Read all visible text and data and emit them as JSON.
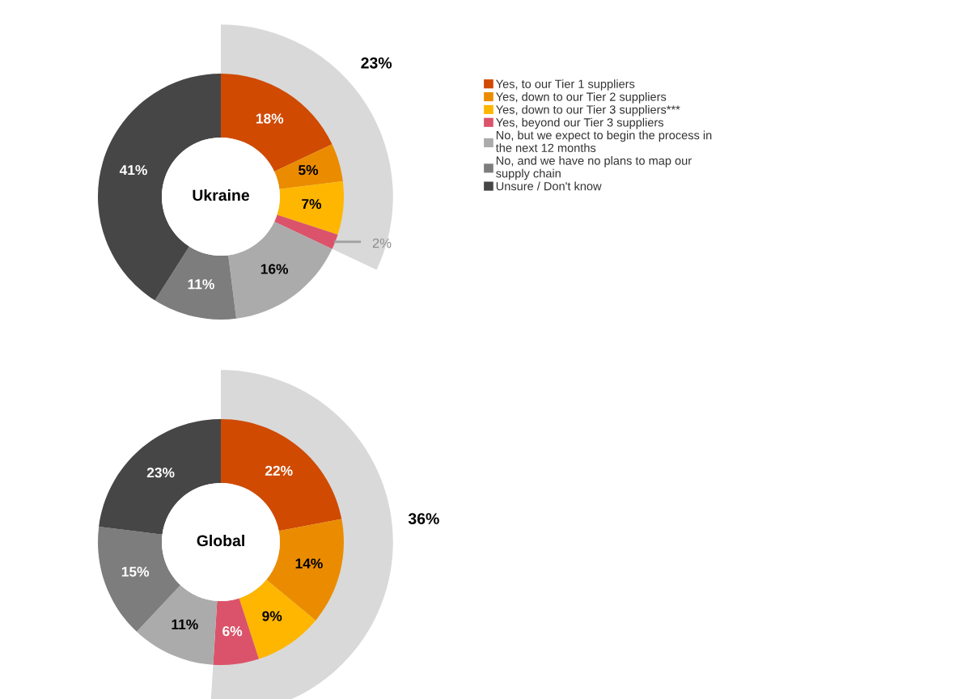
{
  "chart_data": [
    {
      "type": "donut",
      "title": "Ukraine",
      "legend": "right",
      "categories": [
        "Yes, to our Tier 1 suppliers",
        "Yes, down to our Tier 2 suppliers",
        "Yes, down to our Tier 3 suppliers***",
        "Yes, beyond our Tier 3 suppliers",
        "No, but we expect to begin the process in\nthe next 12 months",
        "No, and we have no plans to map our\nsupply chain",
        "Unsure / Don't know"
      ],
      "values": [
        18,
        5,
        7,
        2,
        16,
        11,
        41
      ],
      "value_labels": [
        "18%",
        "5%",
        "7%",
        "2%",
        "16%",
        "11%",
        "41%"
      ],
      "colors": [
        "#d04a02",
        "#eb8c00",
        "#ffb600",
        "#db536a",
        "#ababab",
        "#7d7d7d",
        "#464646"
      ],
      "annotations": [
        "23%"
      ]
    },
    {
      "type": "donut",
      "title": "Global",
      "categories": [
        null,
        null,
        null,
        null,
        null,
        null,
        null
      ],
      "values": [
        22,
        14,
        9,
        6,
        11,
        15,
        23
      ],
      "value_labels": [
        "22%",
        "14%",
        "9%",
        "6%",
        "11%",
        "15%",
        "23%"
      ],
      "colors": [
        "#d04a02",
        "#eb8c00",
        "#ffb600",
        "#db536a",
        "#ababab",
        "#7d7d7d",
        "#464646"
      ],
      "annotations": [
        "36%"
      ]
    }
  ]
}
